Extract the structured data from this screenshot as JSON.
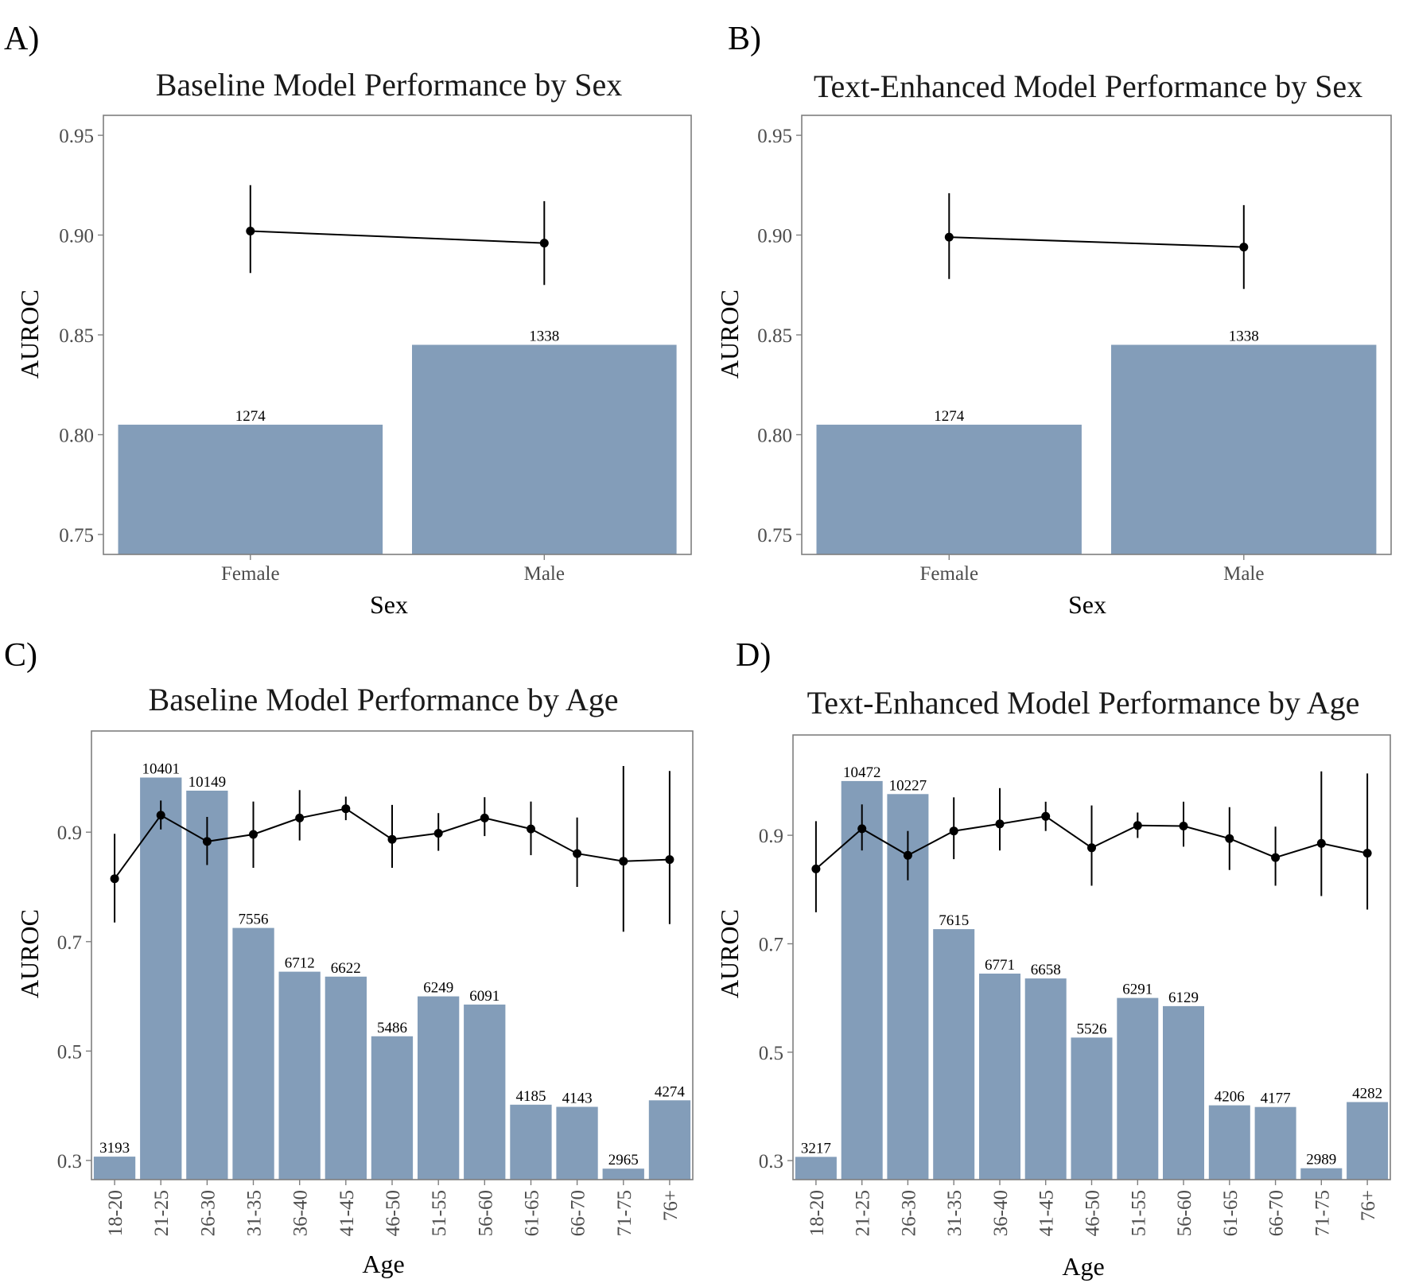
{
  "colors": {
    "bar": "#839DB9",
    "line": "#000000",
    "frame": "#7f7f7f"
  },
  "chart_data": [
    {
      "panel": "A)",
      "type": "bar",
      "title": "Baseline Model Performance by Sex",
      "xlabel": "Sex",
      "ylabel": "AUROC",
      "ylim": [
        0.74,
        0.96
      ],
      "yticks": [
        0.75,
        0.8,
        0.85,
        0.9,
        0.95
      ],
      "ytick_labels": [
        "0.75",
        "0.80",
        "0.85",
        "0.90",
        "0.95"
      ],
      "categories": [
        "Female",
        "Male"
      ],
      "bar_heights": [
        0.805,
        0.845
      ],
      "bar_labels": [
        "1274",
        "1338"
      ],
      "series": [
        {
          "auroc": [
            0.902,
            0.896
          ],
          "ci_low": [
            0.881,
            0.875
          ],
          "ci_high": [
            0.925,
            0.917
          ]
        }
      ],
      "grid": false
    },
    {
      "panel": "B)",
      "type": "bar",
      "title": "Text-Enhanced Model Performance by Sex",
      "xlabel": "Sex",
      "ylabel": "AUROC",
      "ylim": [
        0.74,
        0.96
      ],
      "yticks": [
        0.75,
        0.8,
        0.85,
        0.9,
        0.95
      ],
      "ytick_labels": [
        "0.75",
        "0.80",
        "0.85",
        "0.90",
        "0.95"
      ],
      "categories": [
        "Female",
        "Male"
      ],
      "bar_heights": [
        0.805,
        0.845
      ],
      "bar_labels": [
        "1274",
        "1338"
      ],
      "series": [
        {
          "auroc": [
            0.899,
            0.894
          ],
          "ci_low": [
            0.878,
            0.873
          ],
          "ci_high": [
            0.921,
            0.915
          ]
        }
      ],
      "grid": false
    },
    {
      "panel": "C)",
      "type": "bar",
      "title": "Baseline Model Performance by Age",
      "xlabel": "Age",
      "ylabel": "AUROC",
      "ylim": [
        0.265,
        1.085
      ],
      "yticks": [
        0.3,
        0.5,
        0.7,
        0.9
      ],
      "ytick_labels": [
        "0.3",
        "0.5",
        "0.7",
        "0.9"
      ],
      "categories": [
        "18-20",
        "21-25",
        "26-30",
        "31-35",
        "36-40",
        "41-45",
        "46-50",
        "51-55",
        "56-60",
        "61-65",
        "66-70",
        "71-75",
        "76+"
      ],
      "bar_heights": [
        0.307,
        1.0,
        0.976,
        0.725,
        0.645,
        0.636,
        0.527,
        0.6,
        0.585,
        0.402,
        0.398,
        0.285,
        0.41
      ],
      "bar_labels": [
        "3193",
        "10401",
        "10149",
        "7556",
        "6712",
        "6622",
        "5486",
        "6249",
        "6091",
        "4185",
        "4143",
        "2965",
        "4274"
      ],
      "series": [
        {
          "auroc": [
            0.815,
            0.931,
            0.883,
            0.896,
            0.926,
            0.943,
            0.887,
            0.898,
            0.926,
            0.906,
            0.861,
            0.847,
            0.85
          ],
          "ci_low": [
            0.735,
            0.905,
            0.84,
            0.835,
            0.885,
            0.922,
            0.835,
            0.866,
            0.893,
            0.858,
            0.8,
            0.718,
            0.732
          ],
          "ci_high": [
            0.897,
            0.958,
            0.928,
            0.956,
            0.977,
            0.965,
            0.95,
            0.935,
            0.964,
            0.956,
            0.927,
            1.021,
            1.012
          ]
        }
      ],
      "grid": false
    },
    {
      "panel": "D)",
      "type": "bar",
      "title": "Text-Enhanced Model Performance by Age",
      "xlabel": "Age",
      "ylabel": "AUROC",
      "ylim": [
        0.265,
        1.085
      ],
      "yticks": [
        0.3,
        0.5,
        0.7,
        0.9
      ],
      "ytick_labels": [
        "0.3",
        "0.5",
        "0.7",
        "0.9"
      ],
      "categories": [
        "18-20",
        "21-25",
        "26-30",
        "31-35",
        "36-40",
        "41-45",
        "46-50",
        "51-55",
        "56-60",
        "61-65",
        "66-70",
        "71-75",
        "76+"
      ],
      "bar_heights": [
        0.307,
        1.0,
        0.976,
        0.727,
        0.645,
        0.636,
        0.527,
        0.6,
        0.585,
        0.402,
        0.399,
        0.286,
        0.408
      ],
      "bar_labels": [
        "3217",
        "10472",
        "10227",
        "7615",
        "6771",
        "6658",
        "5526",
        "6291",
        "6129",
        "4206",
        "4177",
        "2989",
        "4282"
      ],
      "series": [
        {
          "auroc": [
            0.838,
            0.912,
            0.863,
            0.908,
            0.921,
            0.935,
            0.877,
            0.918,
            0.917,
            0.894,
            0.859,
            0.885,
            0.867
          ],
          "ci_low": [
            0.758,
            0.872,
            0.817,
            0.856,
            0.872,
            0.908,
            0.807,
            0.895,
            0.879,
            0.836,
            0.807,
            0.788,
            0.763
          ],
          "ci_high": [
            0.926,
            0.957,
            0.908,
            0.97,
            0.987,
            0.962,
            0.955,
            0.942,
            0.962,
            0.952,
            0.916,
            1.018,
            1.014
          ]
        }
      ],
      "grid": false
    }
  ]
}
